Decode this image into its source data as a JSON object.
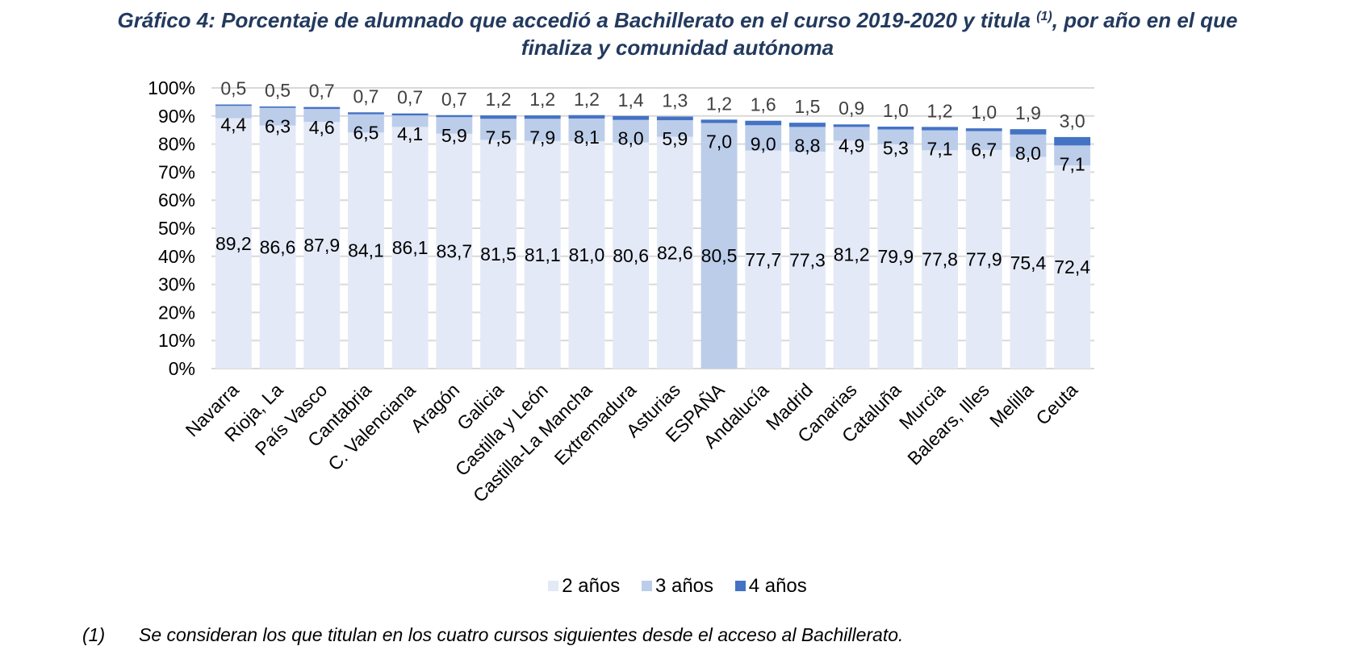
{
  "title": {
    "line1_pre": "Gráfico 4: Porcentaje de alumnado que accedió a Bachillerato en el curso 2019-2020 y titula ",
    "line1_sup": "(1)",
    "line1_post": ", por año en el que",
    "line2": "finaliza y comunidad autónoma"
  },
  "chart_data": {
    "type": "bar",
    "stacked": true,
    "title": "Gráfico 4: Porcentaje de alumnado que accedió a Bachillerato en el curso 2019-2020 y titula (1), por año en el que finaliza y comunidad autónoma",
    "xlabel": "",
    "ylabel": "",
    "ylim": [
      0,
      100
    ],
    "yticks": [
      "0%",
      "10%",
      "20%",
      "30%",
      "40%",
      "50%",
      "60%",
      "70%",
      "80%",
      "90%",
      "100%"
    ],
    "grid": true,
    "legend_position": "bottom",
    "highlight_category": "ESPAÑA",
    "categories": [
      "Navarra",
      "Rioja, La",
      "País Vasco",
      "Cantabria",
      "C. Valenciana",
      "Aragón",
      "Galicia",
      "Castilla y León",
      "Castilla-La Mancha",
      "Extremadura",
      "Asturias",
      "ESPAÑA",
      "Andalucía",
      "Madrid",
      "Canarias",
      "Cataluña",
      "Murcia",
      "Balears, Illes",
      "Melilla",
      "Ceuta"
    ],
    "series": [
      {
        "name": "2 años",
        "color": "#e3e9f6",
        "values": [
          89.2,
          86.6,
          87.9,
          84.1,
          86.1,
          83.7,
          81.5,
          81.1,
          81.0,
          80.6,
          82.6,
          80.5,
          77.7,
          77.3,
          81.2,
          79.9,
          77.8,
          77.9,
          75.4,
          72.4
        ]
      },
      {
        "name": "3 años",
        "color": "#bccdea",
        "values": [
          4.4,
          6.3,
          4.6,
          6.5,
          4.1,
          5.9,
          7.5,
          7.9,
          8.1,
          8.0,
          5.9,
          7.0,
          9.0,
          8.8,
          4.9,
          5.3,
          7.1,
          6.7,
          8.0,
          7.1
        ]
      },
      {
        "name": "4 años",
        "color": "#4472c4",
        "values": [
          0.5,
          0.5,
          0.7,
          0.7,
          0.7,
          0.7,
          1.2,
          1.2,
          1.2,
          1.4,
          1.3,
          1.2,
          1.6,
          1.5,
          0.9,
          1.0,
          1.2,
          1.0,
          1.9,
          3.0
        ]
      }
    ],
    "highlight_color": "#bccdea"
  },
  "legend": [
    {
      "label": "2 años",
      "color": "#e3e9f6"
    },
    {
      "label": "3 años",
      "color": "#bccdea"
    },
    {
      "label": "4 años",
      "color": "#4472c4"
    }
  ],
  "footnote": {
    "marker": "(1)",
    "text": "Se consideran los que titulan en los cuatro cursos siguientes desde el acceso al Bachillerato."
  }
}
